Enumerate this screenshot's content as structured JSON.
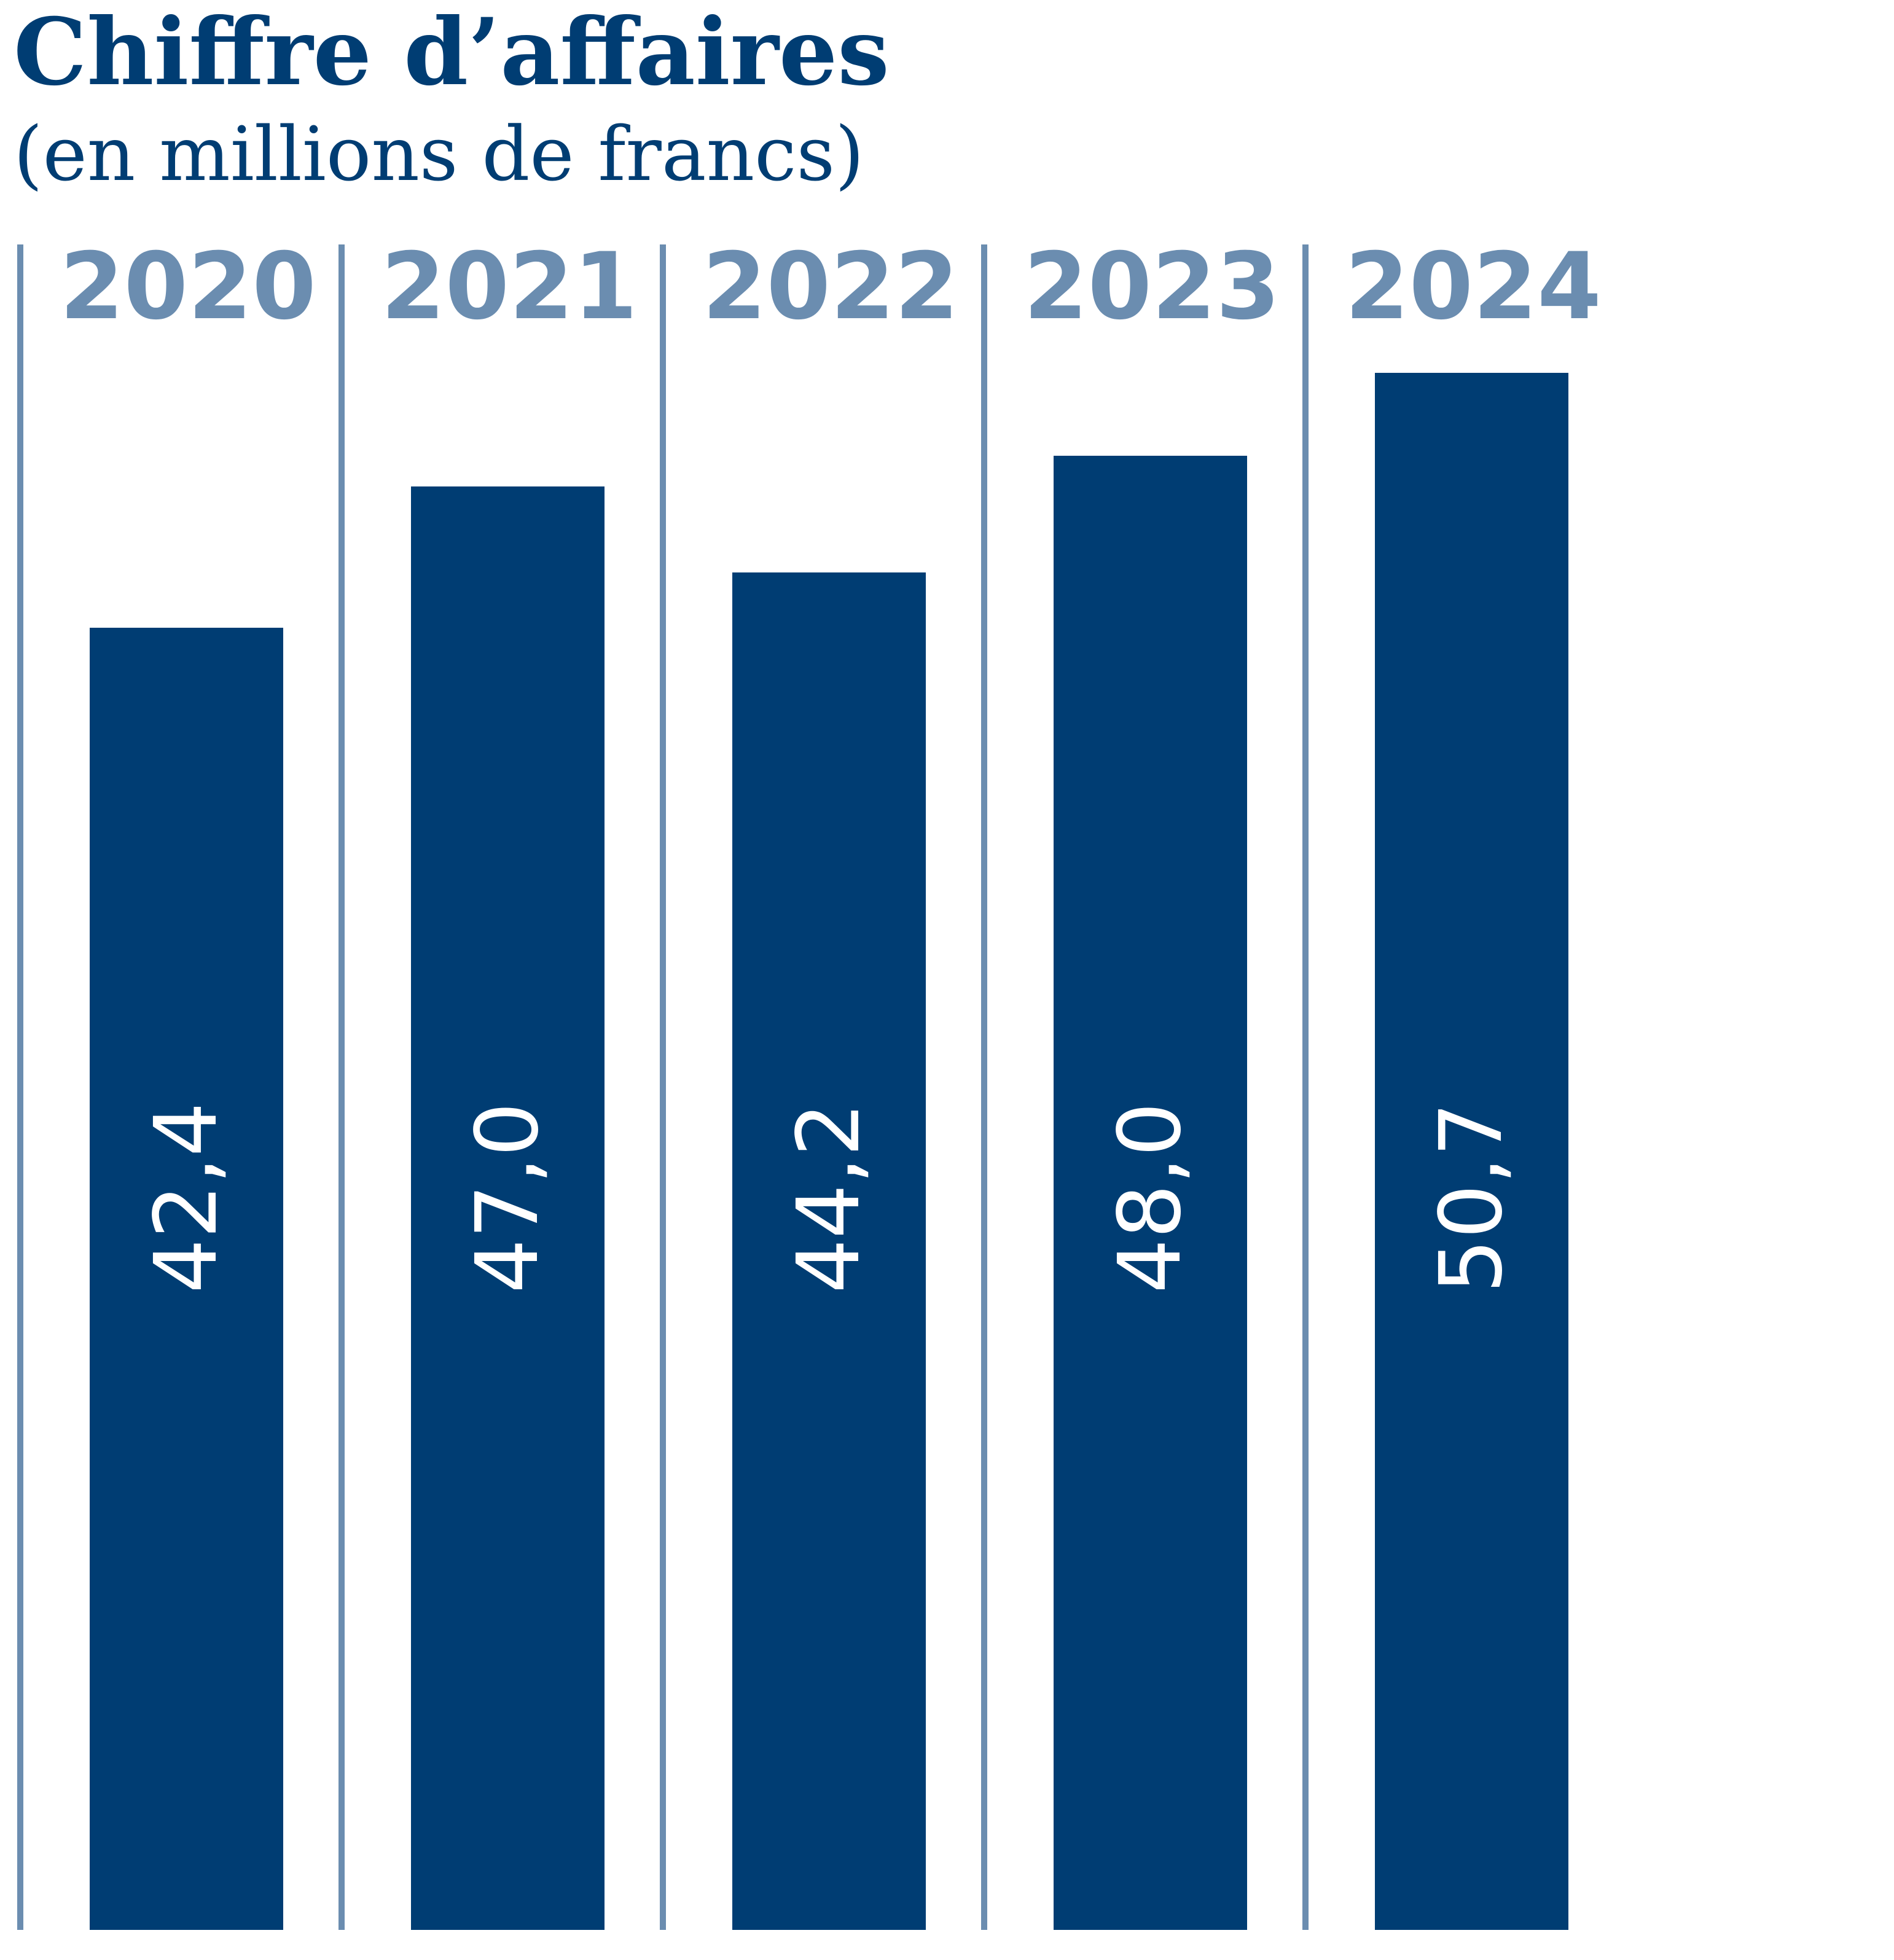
{
  "chart_data": {
    "type": "bar",
    "title": "Chiffre d’affaires",
    "subtitle": "(en millions de francs)",
    "categories": [
      "2020",
      "2021",
      "2022",
      "2023",
      "2024"
    ],
    "values": [
      42.4,
      47.0,
      44.2,
      48.0,
      50.7
    ],
    "value_labels": [
      "42,4",
      "47,0",
      "44,2",
      "48,0",
      "50,7"
    ],
    "xlabel": "",
    "ylabel": "",
    "ylim": [
      0,
      54
    ],
    "grid": false,
    "colors": {
      "bar": "#003d73",
      "year_label": "#6b8db0",
      "divider": "#6b8db0",
      "title": "#003d73",
      "value_label": "#ffffff"
    }
  }
}
